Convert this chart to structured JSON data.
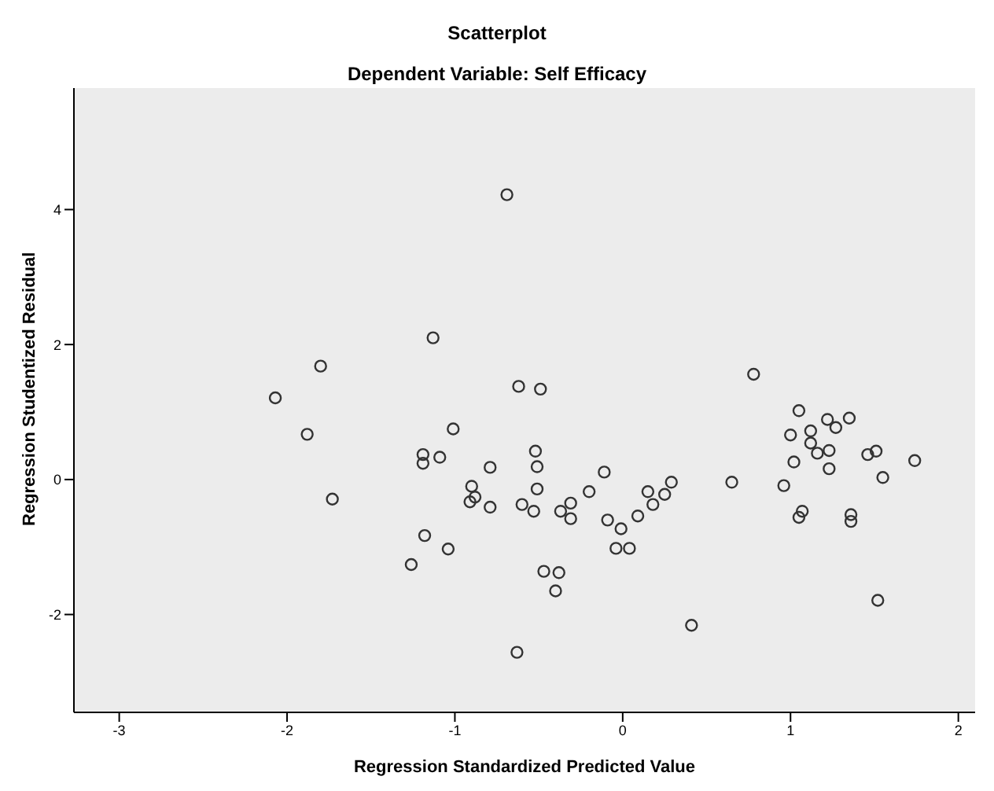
{
  "chart_data": {
    "type": "scatter",
    "title": "Scatterplot",
    "subtitle": "Dependent Variable: Self Efficacy",
    "xlabel": "Regression Standardized Predicted Value",
    "ylabel": "Regression Studentized Residual",
    "marker": "circle",
    "grid": false,
    "legend": false,
    "xlim": [
      -3.27,
      2.1
    ],
    "ylim": [
      -3.45,
      5.8
    ],
    "xticks": [
      -3,
      -2,
      -1,
      0,
      1,
      2
    ],
    "yticks": [
      -2,
      0,
      2,
      4
    ],
    "series": [
      {
        "color": "#333333",
        "x": [
          -0.69,
          -1.13,
          -1.8,
          -2.07,
          -1.88,
          -1.01,
          -1.19,
          -1.19,
          -1.09,
          -0.79,
          -1.73,
          -0.91,
          -0.88,
          -0.9,
          -0.79,
          -1.18,
          -1.04,
          -1.26,
          -0.62,
          -0.49,
          -0.52,
          -0.51,
          -0.6,
          -0.53,
          -0.51,
          -0.37,
          -0.31,
          -0.31,
          -0.2,
          -0.11,
          -0.09,
          -0.01,
          -0.04,
          0.04,
          0.09,
          0.15,
          0.18,
          0.25,
          0.29,
          -0.47,
          -0.38,
          -0.4,
          -0.63,
          0.41,
          0.65,
          0.78,
          0.96,
          1.0,
          1.02,
          1.05,
          1.07,
          1.05,
          1.12,
          1.12,
          1.16,
          1.22,
          1.23,
          1.23,
          1.27,
          1.35,
          1.36,
          1.36,
          1.46,
          1.51,
          1.55,
          1.74,
          1.52
        ],
        "values": [
          4.22,
          2.1,
          1.68,
          1.21,
          0.67,
          0.75,
          0.37,
          0.24,
          0.33,
          0.18,
          -0.29,
          -0.33,
          -0.26,
          -0.1,
          -0.41,
          -0.83,
          -1.03,
          -1.26,
          1.38,
          1.34,
          0.42,
          0.19,
          -0.37,
          -0.47,
          -0.14,
          -0.47,
          -0.35,
          -0.58,
          -0.18,
          0.11,
          -0.6,
          -0.73,
          -1.02,
          -1.02,
          -0.54,
          -0.18,
          -0.37,
          -0.22,
          -0.04,
          -1.36,
          -1.38,
          -1.65,
          -2.56,
          -2.16,
          -0.04,
          1.56,
          -0.09,
          0.66,
          0.26,
          -0.56,
          -0.47,
          1.02,
          0.72,
          0.54,
          0.39,
          0.89,
          0.43,
          0.16,
          0.77,
          0.91,
          -0.52,
          -0.62,
          0.37,
          0.42,
          0.03,
          0.28,
          -1.79
        ]
      }
    ]
  }
}
